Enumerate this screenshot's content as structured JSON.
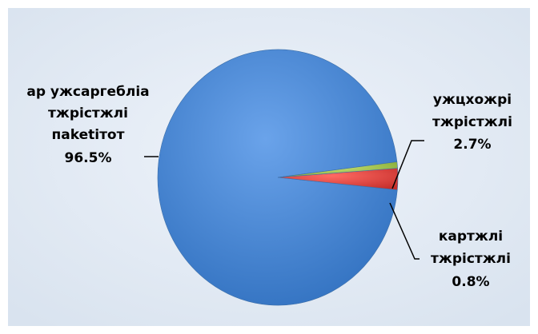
{
  "chart_data": {
    "type": "pie",
    "title": "",
    "legend": "none",
    "slices": [
      {
        "label": [
          "ар ужсаргебліа",
          "тжрістжлі",
          "паketітот"
        ],
        "value": 96.5,
        "value_label": "96.5%",
        "color": "#4a86d4"
      },
      {
        "label": [
          "ужцхожрі",
          "тжрістжлі"
        ],
        "value": 2.7,
        "value_label": "2.7%",
        "color": "#e04a45"
      },
      {
        "label": [
          "картжлі",
          "тжрістжлі"
        ],
        "value": 0.8,
        "value_label": "0.8%",
        "color": "#a7c84e"
      }
    ]
  }
}
